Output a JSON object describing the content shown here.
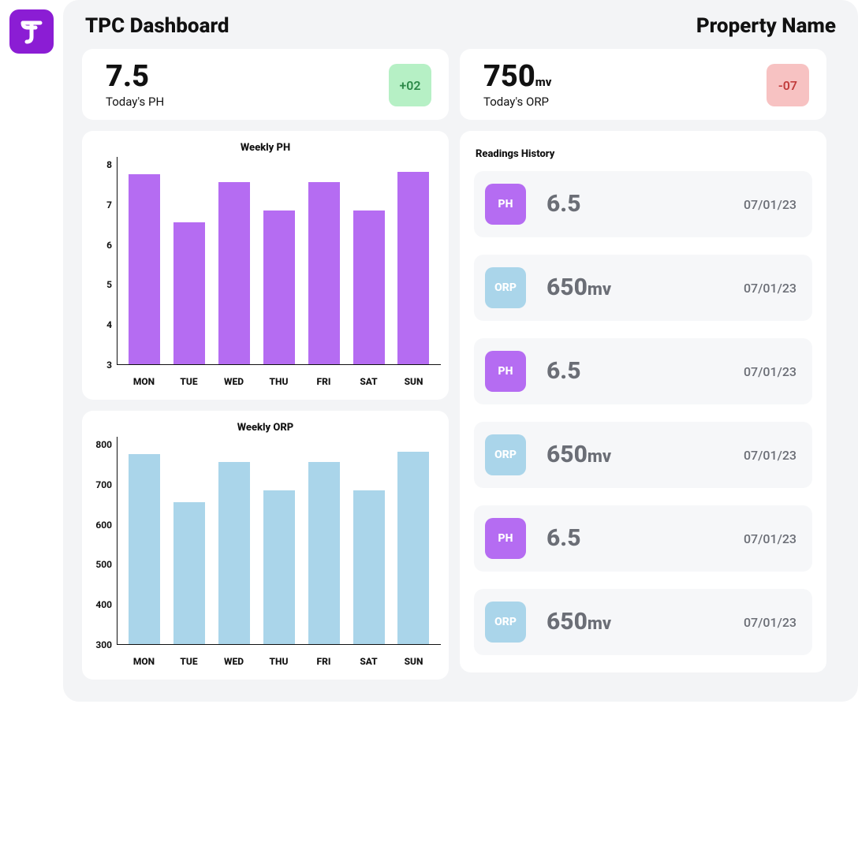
{
  "header": {
    "title": "TPC Dashboard",
    "property": "Property Name"
  },
  "logo": {
    "bg_color": "#8b1dd4",
    "fg_color": "#ffffff"
  },
  "kpi_ph": {
    "value": "7.5",
    "unit": "",
    "label": "Today's PH",
    "delta": "+02",
    "delta_bg": "#b6f0c5",
    "delta_fg": "#2d8a49"
  },
  "kpi_orp": {
    "value": "750",
    "unit": "mv",
    "label": "Today's ORP",
    "delta": "-07",
    "delta_bg": "#f7c2c2",
    "delta_fg": "#c23d3d"
  },
  "chart_ph": {
    "type": "bar",
    "title": "Weekly PH",
    "categories": [
      "MON",
      "TUE",
      "WED",
      "THU",
      "FRI",
      "SAT",
      "SUN"
    ],
    "values": [
      7.75,
      6.55,
      7.55,
      6.85,
      7.55,
      6.85,
      7.8
    ],
    "y_min": 3.0,
    "y_max": 8.2,
    "y_ticks": [
      3,
      4,
      5,
      6,
      7,
      8
    ],
    "bar_color": "#b56cf2",
    "axis_color": "#111111",
    "label_fontsize": 12
  },
  "chart_orp": {
    "type": "bar",
    "title": "Weekly ORP",
    "categories": [
      "MON",
      "TUE",
      "WED",
      "THU",
      "FRI",
      "SAT",
      "SUN"
    ],
    "values": [
      775,
      655,
      755,
      685,
      755,
      685,
      780
    ],
    "y_min": 300,
    "y_max": 820,
    "y_ticks": [
      300,
      400,
      500,
      600,
      700,
      800
    ],
    "bar_color": "#aad5ea",
    "axis_color": "#111111",
    "label_fontsize": 12
  },
  "history": {
    "title": "Readings History",
    "items": [
      {
        "type": "PH",
        "badge_bg": "#b56cf2",
        "value": "6.5",
        "unit": "",
        "date": "07/01/23"
      },
      {
        "type": "ORP",
        "badge_bg": "#aad5ea",
        "value": "650",
        "unit": "mv",
        "date": "07/01/23"
      },
      {
        "type": "PH",
        "badge_bg": "#b56cf2",
        "value": "6.5",
        "unit": "",
        "date": "07/01/23"
      },
      {
        "type": "ORP",
        "badge_bg": "#aad5ea",
        "value": "650",
        "unit": "mv",
        "date": "07/01/23"
      },
      {
        "type": "PH",
        "badge_bg": "#b56cf2",
        "value": "6.5",
        "unit": "",
        "date": "07/01/23"
      },
      {
        "type": "ORP",
        "badge_bg": "#aad5ea",
        "value": "650",
        "unit": "mv",
        "date": "07/01/23"
      }
    ]
  },
  "colors": {
    "page_bg": "#f3f4f6",
    "card_bg": "#ffffff",
    "history_item_bg": "#f6f7f9",
    "text_muted": "#6b6e76"
  }
}
